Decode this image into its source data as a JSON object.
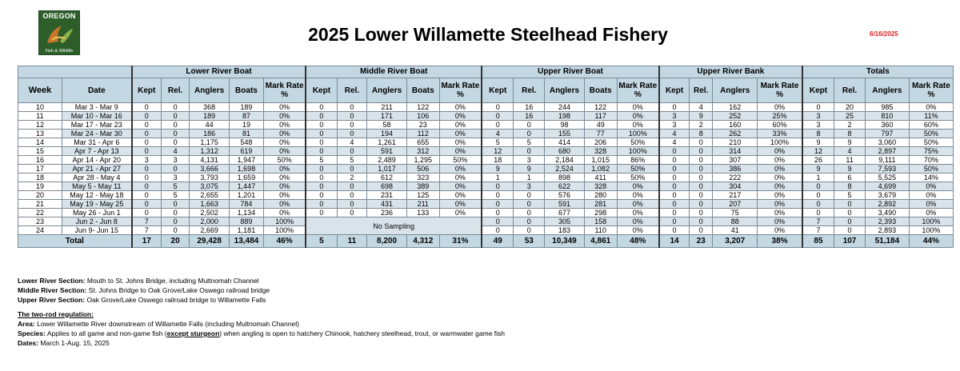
{
  "logo": {
    "top": "OREGON",
    "bottom": "Fish & Wildlife"
  },
  "title": "2025 Lower Willamette Steelhead Fishery",
  "date": "6/16/2025",
  "groups": [
    "Lower River Boat",
    "Middle River Boat",
    "Upper River Boat",
    "Upper River Bank",
    "Totals"
  ],
  "headers": {
    "week": "Week",
    "date": "Date",
    "kept": "Kept",
    "rel": "Rel.",
    "anglers": "Anglers",
    "boats": "Boats",
    "mark": "Mark Rate %"
  },
  "no_sampling": "No Sampling",
  "rows": [
    {
      "week": "10",
      "date": "Mar 3 - Mar 9",
      "lrb": [
        "0",
        "0",
        "368",
        "189",
        "0%"
      ],
      "mrb": [
        "0",
        "0",
        "211",
        "122",
        "0%"
      ],
      "urb": [
        "0",
        "16",
        "244",
        "122",
        "0%"
      ],
      "ubk": [
        "0",
        "4",
        "162",
        "0%"
      ],
      "tot": [
        "0",
        "20",
        "985",
        "0%"
      ]
    },
    {
      "week": "11",
      "date": "Mar 10 - Mar 16",
      "lrb": [
        "0",
        "0",
        "189",
        "87",
        "0%"
      ],
      "mrb": [
        "0",
        "0",
        "171",
        "106",
        "0%"
      ],
      "urb": [
        "0",
        "16",
        "198",
        "117",
        "0%"
      ],
      "ubk": [
        "3",
        "9",
        "252",
        "25%"
      ],
      "tot": [
        "3",
        "25",
        "810",
        "11%"
      ]
    },
    {
      "week": "12",
      "date": "Mar 17 - Mar 23",
      "lrb": [
        "0",
        "0",
        "44",
        "19",
        "0%"
      ],
      "mrb": [
        "0",
        "0",
        "58",
        "23",
        "0%"
      ],
      "urb": [
        "0",
        "0",
        "98",
        "49",
        "0%"
      ],
      "ubk": [
        "3",
        "2",
        "160",
        "60%"
      ],
      "tot": [
        "3",
        "2",
        "360",
        "60%"
      ]
    },
    {
      "week": "13",
      "date": "Mar 24 - Mar 30",
      "lrb": [
        "0",
        "0",
        "186",
        "81",
        "0%"
      ],
      "mrb": [
        "0",
        "0",
        "194",
        "112",
        "0%"
      ],
      "urb": [
        "4",
        "0",
        "155",
        "77",
        "100%"
      ],
      "ubk": [
        "4",
        "8",
        "262",
        "33%"
      ],
      "tot": [
        "8",
        "8",
        "797",
        "50%"
      ]
    },
    {
      "week": "14",
      "date": "Mar 31 - Apr 6",
      "lrb": [
        "0",
        "0",
        "1,175",
        "548",
        "0%"
      ],
      "mrb": [
        "0",
        "4",
        "1,261",
        "655",
        "0%"
      ],
      "urb": [
        "5",
        "5",
        "414",
        "206",
        "50%"
      ],
      "ubk": [
        "4",
        "0",
        "210",
        "100%"
      ],
      "tot": [
        "9",
        "9",
        "3,060",
        "50%"
      ]
    },
    {
      "week": "15",
      "date": "Apr 7 - Apr 13",
      "lrb": [
        "0",
        "4",
        "1,312",
        "619",
        "0%"
      ],
      "mrb": [
        "0",
        "0",
        "591",
        "312",
        "0%"
      ],
      "urb": [
        "12",
        "0",
        "680",
        "328",
        "100%"
      ],
      "ubk": [
        "0",
        "0",
        "314",
        "0%"
      ],
      "tot": [
        "12",
        "4",
        "2,897",
        "75%"
      ]
    },
    {
      "week": "16",
      "date": "Apr 14 - Apr 20",
      "lrb": [
        "3",
        "3",
        "4,131",
        "1,947",
        "50%"
      ],
      "mrb": [
        "5",
        "5",
        "2,489",
        "1,295",
        "50%"
      ],
      "urb": [
        "18",
        "3",
        "2,184",
        "1,015",
        "86%"
      ],
      "ubk": [
        "0",
        "0",
        "307",
        "0%"
      ],
      "tot": [
        "26",
        "11",
        "9,111",
        "70%"
      ]
    },
    {
      "week": "17",
      "date": "Apr 21 - Apr 27",
      "lrb": [
        "0",
        "0",
        "3,666",
        "1,698",
        "0%"
      ],
      "mrb": [
        "0",
        "0",
        "1,017",
        "506",
        "0%"
      ],
      "urb": [
        "9",
        "9",
        "2,524",
        "1,082",
        "50%"
      ],
      "ubk": [
        "0",
        "0",
        "386",
        "0%"
      ],
      "tot": [
        "9",
        "9",
        "7,593",
        "50%"
      ]
    },
    {
      "week": "18",
      "date": "Apr 28 - May 4",
      "lrb": [
        "0",
        "3",
        "3,793",
        "1,659",
        "0%"
      ],
      "mrb": [
        "0",
        "2",
        "612",
        "323",
        "0%"
      ],
      "urb": [
        "1",
        "1",
        "898",
        "411",
        "50%"
      ],
      "ubk": [
        "0",
        "0",
        "222",
        "0%"
      ],
      "tot": [
        "1",
        "6",
        "5,525",
        "14%"
      ]
    },
    {
      "week": "19",
      "date": "May 5 - May 11",
      "lrb": [
        "0",
        "5",
        "3,075",
        "1,447",
        "0%"
      ],
      "mrb": [
        "0",
        "0",
        "698",
        "389",
        "0%"
      ],
      "urb": [
        "0",
        "3",
        "622",
        "328",
        "0%"
      ],
      "ubk": [
        "0",
        "0",
        "304",
        "0%"
      ],
      "tot": [
        "0",
        "8",
        "4,699",
        "0%"
      ]
    },
    {
      "week": "20",
      "date": "May 12 - May 18",
      "lrb": [
        "0",
        "5",
        "2,655",
        "1,201",
        "0%"
      ],
      "mrb": [
        "0",
        "0",
        "231",
        "125",
        "0%"
      ],
      "urb": [
        "0",
        "0",
        "576",
        "280",
        "0%"
      ],
      "ubk": [
        "0",
        "0",
        "217",
        "0%"
      ],
      "tot": [
        "0",
        "5",
        "3,679",
        "0%"
      ]
    },
    {
      "week": "21",
      "date": "May 19 - May 25",
      "lrb": [
        "0",
        "0",
        "1,663",
        "784",
        "0%"
      ],
      "mrb": [
        "0",
        "0",
        "431",
        "211",
        "0%"
      ],
      "urb": [
        "0",
        "0",
        "591",
        "281",
        "0%"
      ],
      "ubk": [
        "0",
        "0",
        "207",
        "0%"
      ],
      "tot": [
        "0",
        "0",
        "2,892",
        "0%"
      ]
    },
    {
      "week": "22",
      "date": "May 26 - Jun 1",
      "lrb": [
        "0",
        "0",
        "2,502",
        "1,134",
        "0%"
      ],
      "mrb": [
        "0",
        "0",
        "236",
        "133",
        "0%"
      ],
      "urb": [
        "0",
        "0",
        "677",
        "298",
        "0%"
      ],
      "ubk": [
        "0",
        "0",
        "75",
        "0%"
      ],
      "tot": [
        "0",
        "0",
        "3,490",
        "0%"
      ]
    },
    {
      "week": "23",
      "date": "Jun 2 - Jun 8",
      "lrb": [
        "7",
        "0",
        "2,000",
        "889",
        "100%"
      ],
      "mrb": null,
      "urb": [
        "0",
        "0",
        "305",
        "158",
        "0%"
      ],
      "ubk": [
        "0",
        "0",
        "88",
        "0%"
      ],
      "tot": [
        "7",
        "0",
        "2,393",
        "100%"
      ]
    },
    {
      "week": "24",
      "date": "Jun 9- Jun 15",
      "lrb": [
        "7",
        "0",
        "2,669",
        "1,181",
        "100%"
      ],
      "mrb": null,
      "urb": [
        "0",
        "0",
        "183",
        "110",
        "0%"
      ],
      "ubk": [
        "0",
        "0",
        "41",
        "0%"
      ],
      "tot": [
        "7",
        "0",
        "2,893",
        "100%"
      ]
    }
  ],
  "total": {
    "label": "Total",
    "lrb": [
      "17",
      "20",
      "29,428",
      "13,484",
      "46%"
    ],
    "mrb": [
      "5",
      "11",
      "8,200",
      "4,312",
      "31%"
    ],
    "urb": [
      "49",
      "53",
      "10,349",
      "4,861",
      "48%"
    ],
    "ubk": [
      "14",
      "23",
      "3,207",
      "38%"
    ],
    "tot": [
      "85",
      "107",
      "51,184",
      "44%"
    ]
  },
  "notes": {
    "lower_label": "Lower River Section:",
    "lower_text": " Mouth to St. Johns Bridge, including Multnomah Channel",
    "middle_label": "Middle River Section:",
    "middle_text": " St. Johns Bridge to Oak Grove/Lake Oswego railroad bridge",
    "upper_label": "Upper River Section:",
    "upper_text": " Oak Grove/Lake Oswego railroad bridge to Willamette Falls",
    "two_rod_heading": "The two-rod regulation:",
    "area_label": "Area:",
    "area_text": " Lower Willamette River downstream of Willamette Falls (including Multnomah Channel)",
    "species_label": "Species:",
    "species_pre": " Applies to all game and non-game fish (",
    "species_except": "except sturgeon",
    "species_post": ") when angling is open to hatchery Chinook, hatchery steelhead, trout, or warmwater game fish",
    "dates_label": "Dates:",
    "dates_text": " March 1-Aug. 15, 2025"
  }
}
